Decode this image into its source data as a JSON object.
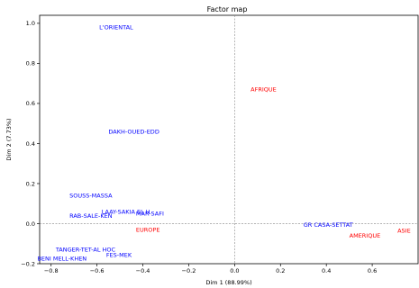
{
  "chart_data": {
    "type": "scatter",
    "title": "Factor map",
    "xlabel": "Dim 1 (88.99%)",
    "ylabel": "Dim 2 (7.73%)",
    "xlim": [
      -0.85,
      0.8
    ],
    "ylim": [
      -0.2,
      1.04
    ],
    "xticks": [
      -0.8,
      -0.6,
      -0.4,
      -0.2,
      0.0,
      0.2,
      0.4,
      0.6
    ],
    "xtick_labels": [
      "−0.8",
      "−0.6",
      "−0.4",
      "−0.2",
      "0.0",
      "0.2",
      "0.4",
      "0.6"
    ],
    "yticks": [
      -0.2,
      0.0,
      0.2,
      0.4,
      0.6,
      0.8,
      1.0
    ],
    "ytick_labels": [
      "−0.2",
      "0.0",
      "0.2",
      "0.4",
      "0.6",
      "0.8",
      "1.0"
    ],
    "grid": false,
    "reference_lines": {
      "x": 0,
      "y": 0
    },
    "colors": {
      "regions": "#0000ff",
      "continents": "#ff0000"
    },
    "series": [
      {
        "group": "regions",
        "points": [
          {
            "label": "L'ORIENTAL",
            "x": -0.59,
            "y": 0.98
          },
          {
            "label": "DAKH-OUED-EDD",
            "x": -0.55,
            "y": 0.46
          },
          {
            "label": "SOUSS-MASSA",
            "x": -0.72,
            "y": 0.14
          },
          {
            "label": "LAAY-SAKIA EL H",
            "x": -0.58,
            "y": 0.06
          },
          {
            "label": "MAR-SAFI",
            "x": -0.43,
            "y": 0.05
          },
          {
            "label": "RAB-SALE-KEN",
            "x": -0.72,
            "y": 0.04
          },
          {
            "label": "GR CASA-SETTAT",
            "x": 0.3,
            "y": -0.005
          },
          {
            "label": "TANGER-TET-AL HOC",
            "x": -0.78,
            "y": -0.13
          },
          {
            "label": "FES-MEK",
            "x": -0.56,
            "y": -0.155
          },
          {
            "label": "BENI MELL-KHEN",
            "x": -0.86,
            "y": -0.175
          }
        ]
      },
      {
        "group": "continents",
        "points": [
          {
            "label": "AFRIQUE",
            "x": 0.07,
            "y": 0.67
          },
          {
            "label": "EUROPE",
            "x": -0.43,
            "y": -0.03
          },
          {
            "label": "ASIE",
            "x": 0.71,
            "y": -0.035
          },
          {
            "label": "AMERIQUE",
            "x": 0.5,
            "y": -0.06
          }
        ]
      }
    ]
  }
}
